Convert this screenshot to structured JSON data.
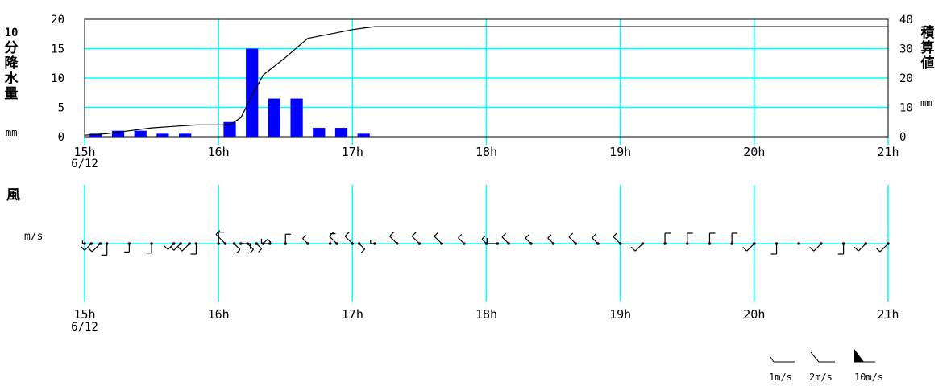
{
  "chart_data": [
    {
      "type": "bar+line",
      "x_ticks": [
        "15h",
        "16h",
        "17h",
        "18h",
        "19h",
        "20h",
        "21h"
      ],
      "x_start_date": "6/12",
      "left_axis": {
        "label": "10分降水量",
        "unit": "mm",
        "range": [
          0,
          20
        ],
        "ticks": [
          "0",
          "5",
          "10",
          "15",
          "20"
        ]
      },
      "right_axis": {
        "label": "積算値",
        "unit": "mm",
        "range": [
          0,
          40
        ],
        "ticks": [
          "0",
          "10",
          "20",
          "30",
          "40"
        ]
      },
      "series": [
        {
          "kind": "bar",
          "color": "#0000ff",
          "x": [
            "15:10",
            "15:20",
            "15:30",
            "15:40",
            "15:50",
            "16:00",
            "16:10",
            "16:20",
            "16:30",
            "16:40",
            "16:50",
            "17:00",
            "17:10",
            "17:20",
            "17:30",
            "17:40",
            "17:50",
            "18:00",
            "18:10",
            "18:20",
            "18:30",
            "18:40",
            "18:50",
            "19:00",
            "19:10",
            "19:20",
            "19:30",
            "19:40",
            "19:50",
            "20:00",
            "20:10",
            "20:20",
            "20:30",
            "20:40",
            "20:50",
            "21:00"
          ],
          "values": [
            0.5,
            1.0,
            1.0,
            0.5,
            0.5,
            0.0,
            2.5,
            15.0,
            6.5,
            6.5,
            1.5,
            1.5,
            0.5,
            0,
            0,
            0,
            0,
            0,
            0,
            0,
            0,
            0,
            0,
            0,
            0,
            0,
            0,
            0,
            0,
            0,
            0,
            0,
            0,
            0,
            0,
            0
          ]
        },
        {
          "kind": "line",
          "color": "#000000",
          "x": [
            "15:00",
            "15:10",
            "15:20",
            "15:30",
            "15:40",
            "15:50",
            "16:00",
            "16:05",
            "16:10",
            "16:15",
            "16:20",
            "16:30",
            "16:40",
            "16:50",
            "17:00",
            "17:05",
            "17:10",
            "21:00"
          ],
          "values": [
            0.5,
            1.0,
            2.0,
            3.0,
            3.5,
            4.0,
            4.0,
            4.0,
            6.5,
            14.0,
            21.0,
            27.0,
            33.5,
            35.0,
            36.5,
            37.0,
            37.5,
            37.5
          ]
        }
      ],
      "grid": true,
      "grid_color": "#00ffff"
    },
    {
      "type": "wind-barbs",
      "title": "風",
      "unit": "m/s",
      "x_ticks": [
        "15h",
        "16h",
        "17h",
        "18h",
        "19h",
        "20h",
        "21h"
      ],
      "x_start_date": "6/12",
      "grid": true,
      "grid_color": "#00ffff",
      "observations": [
        {
          "t": "15:00",
          "dir": "W",
          "speed": 0.4
        },
        {
          "t": "15:03",
          "dir": "SW",
          "speed": 1.8
        },
        {
          "t": "15:07",
          "dir": "SW",
          "speed": 2.2
        },
        {
          "t": "15:10",
          "dir": "S",
          "speed": 2.2
        },
        {
          "t": "15:20",
          "dir": "S",
          "speed": 1.6
        },
        {
          "t": "15:30",
          "dir": "S",
          "speed": 1.8
        },
        {
          "t": "15:40",
          "dir": "SW",
          "speed": 1.6
        },
        {
          "t": "15:43",
          "dir": "SW",
          "speed": 1.8
        },
        {
          "t": "15:47",
          "dir": "SW",
          "speed": 2.0
        },
        {
          "t": "15:50",
          "dir": "S",
          "speed": 2.0
        },
        {
          "t": "16:00",
          "dir": "N",
          "speed": 2.2
        },
        {
          "t": "16:03",
          "dir": "NW",
          "speed": 2.5
        },
        {
          "t": "16:07",
          "dir": "SE",
          "speed": 1.6
        },
        {
          "t": "16:10",
          "dir": "E",
          "speed": 1.8
        },
        {
          "t": "16:13",
          "dir": "SE",
          "speed": 1.6
        },
        {
          "t": "16:17",
          "dir": "SE",
          "speed": 1.4
        },
        {
          "t": "16:20",
          "dir": "NE",
          "speed": 1.2
        },
        {
          "t": "16:23",
          "dir": "W",
          "speed": 1.6
        },
        {
          "t": "16:30",
          "dir": "N",
          "speed": 1.8
        },
        {
          "t": "16:40",
          "dir": "NW",
          "speed": 1.4
        },
        {
          "t": "16:50",
          "dir": "N",
          "speed": 1.9
        },
        {
          "t": "16:53",
          "dir": "NW",
          "speed": 2.0
        },
        {
          "t": "17:00",
          "dir": "NW",
          "speed": 2.0
        },
        {
          "t": "17:03",
          "dir": "SE",
          "speed": 1.5
        },
        {
          "t": "17:10",
          "dir": "W",
          "speed": 0.8
        },
        {
          "t": "17:20",
          "dir": "NW",
          "speed": 2.0
        },
        {
          "t": "17:30",
          "dir": "NW",
          "speed": 2.0
        },
        {
          "t": "17:40",
          "dir": "NW",
          "speed": 2.0
        },
        {
          "t": "17:50",
          "dir": "NW",
          "speed": 1.6
        },
        {
          "t": "18:00",
          "dir": "NW",
          "speed": 1.2
        },
        {
          "t": "18:05",
          "dir": "W",
          "speed": 2.0
        },
        {
          "t": "18:10",
          "dir": "NW",
          "speed": 1.8
        },
        {
          "t": "18:20",
          "dir": "NW",
          "speed": 1.5
        },
        {
          "t": "18:30",
          "dir": "NW",
          "speed": 1.5
        },
        {
          "t": "18:40",
          "dir": "NW",
          "speed": 1.8
        },
        {
          "t": "18:50",
          "dir": "NW",
          "speed": 1.6
        },
        {
          "t": "19:00",
          "dir": "NW",
          "speed": 1.9
        },
        {
          "t": "19:10",
          "dir": "SW",
          "speed": 2.0
        },
        {
          "t": "19:20",
          "dir": "N",
          "speed": 2.0
        },
        {
          "t": "19:30",
          "dir": "N",
          "speed": 2.0
        },
        {
          "t": "19:40",
          "dir": "N",
          "speed": 2.0
        },
        {
          "t": "19:50",
          "dir": "N",
          "speed": 2.0
        },
        {
          "t": "20:00",
          "dir": "SW",
          "speed": 2.0
        },
        {
          "t": "20:10",
          "dir": "S",
          "speed": 2.0
        },
        {
          "t": "20:20",
          "dir": "calm",
          "speed": 0.0
        },
        {
          "t": "20:30",
          "dir": "SW",
          "speed": 2.0
        },
        {
          "t": "20:40",
          "dir": "S",
          "speed": 2.0
        },
        {
          "t": "20:50",
          "dir": "SW",
          "speed": 2.0
        },
        {
          "t": "21:00",
          "dir": "SW",
          "speed": 2.2
        }
      ]
    }
  ],
  "labels": {
    "rain_left": "10分降水量",
    "rain_left_unit": "mm",
    "rain_right": "積算値",
    "rain_right_unit": "mm",
    "wind_title": "風",
    "wind_unit": "m/s"
  },
  "legend": [
    {
      "label": "1m/s",
      "speed": 1
    },
    {
      "label": "2m/s",
      "speed": 2
    },
    {
      "label": "10m/s",
      "speed": 10
    }
  ]
}
